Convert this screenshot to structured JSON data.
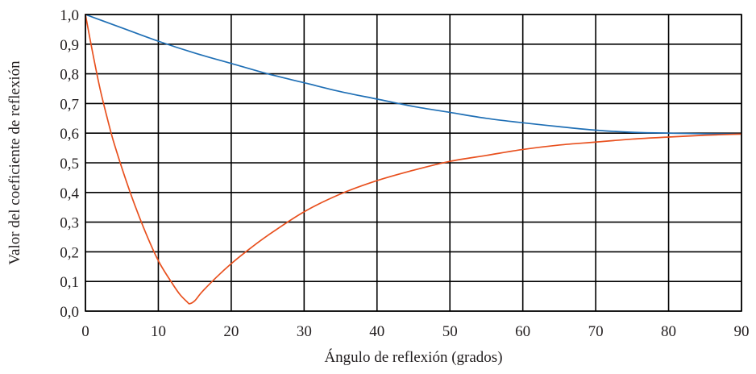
{
  "chart_data": {
    "type": "line",
    "title": "",
    "xlabel": "Ángulo de reflexión (grados)",
    "ylabel": "Valor del coeficiente de reflexión",
    "xlim": [
      0,
      90
    ],
    "ylim": [
      0,
      1
    ],
    "grid": true,
    "legend": "none",
    "x_ticks": [
      0,
      10,
      20,
      30,
      40,
      50,
      60,
      70,
      80,
      90
    ],
    "x_tick_labels": [
      "0",
      "10",
      "20",
      "30",
      "40",
      "50",
      "60",
      "70",
      "80",
      "90"
    ],
    "y_ticks": [
      0,
      0.1,
      0.2,
      0.3,
      0.4,
      0.5,
      0.6,
      0.7,
      0.8,
      0.9,
      1.0
    ],
    "y_tick_labels": [
      "0,0",
      "0,1",
      "0,2",
      "0,3",
      "0,4",
      "0,5",
      "0,6",
      "0,7",
      "0,8",
      "0,9",
      "1,0"
    ],
    "series": [
      {
        "color": "#1f6fb5",
        "x": [
          0,
          5,
          10,
          15,
          20,
          25,
          30,
          35,
          40,
          45,
          50,
          55,
          60,
          65,
          70,
          75,
          80,
          85,
          90
        ],
        "y": [
          1.0,
          0.955,
          0.91,
          0.87,
          0.835,
          0.8,
          0.77,
          0.74,
          0.715,
          0.69,
          0.67,
          0.65,
          0.635,
          0.622,
          0.61,
          0.603,
          0.6,
          0.598,
          0.597
        ]
      },
      {
        "color": "#e8501e",
        "x": [
          0,
          1,
          2,
          3,
          4,
          6,
          8,
          10,
          12,
          13,
          14,
          14.3,
          15,
          16,
          18,
          20,
          22,
          25,
          30,
          35,
          40,
          45,
          50,
          55,
          60,
          65,
          70,
          75,
          80,
          85,
          90
        ],
        "y": [
          1.0,
          0.87,
          0.75,
          0.65,
          0.56,
          0.41,
          0.28,
          0.17,
          0.09,
          0.055,
          0.03,
          0.025,
          0.035,
          0.065,
          0.115,
          0.16,
          0.2,
          0.255,
          0.335,
          0.395,
          0.44,
          0.475,
          0.505,
          0.525,
          0.545,
          0.56,
          0.57,
          0.58,
          0.587,
          0.593,
          0.597
        ]
      }
    ]
  }
}
